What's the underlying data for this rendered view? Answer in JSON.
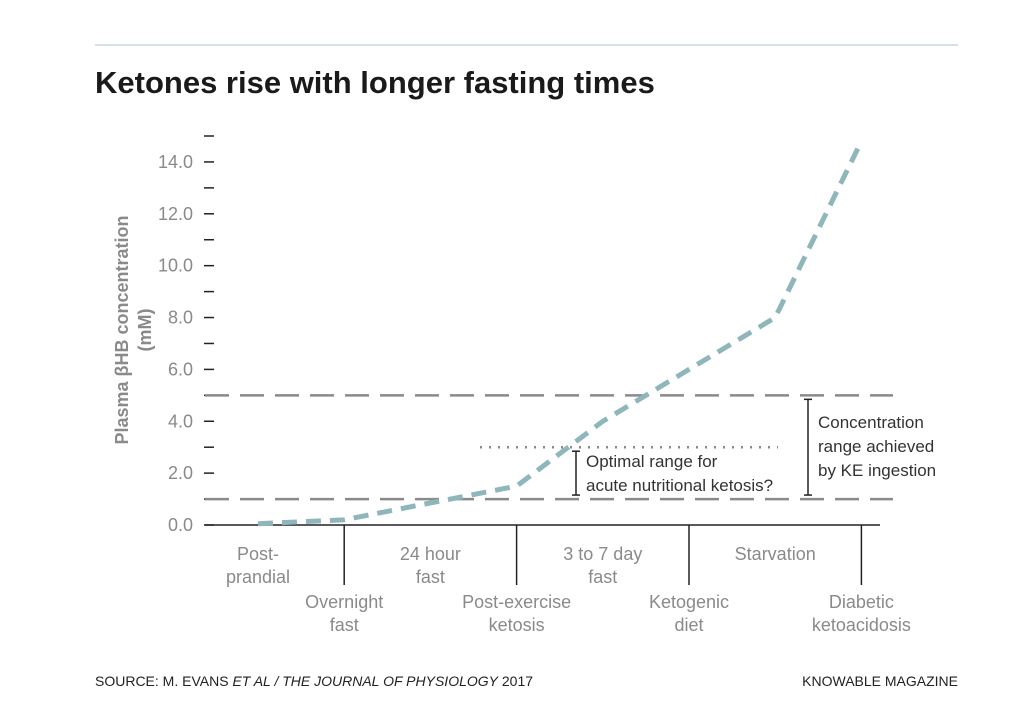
{
  "chart_data": {
    "type": "line",
    "title": "Ketones rise with longer fasting times",
    "y_label": [
      "Plasma βHB concentration",
      "(mM)"
    ],
    "categories": [
      [
        "Post-",
        "prandial"
      ],
      [
        "Overnight",
        "fast"
      ],
      [
        "24 hour",
        "fast"
      ],
      [
        "Post-exercise",
        "ketosis"
      ],
      [
        "3 to 7 day",
        "fast"
      ],
      [
        "Ketogenic",
        "diet"
      ],
      [
        "Starvation"
      ],
      [
        "Diabetic",
        "ketoacidosis"
      ]
    ],
    "series": [
      {
        "color": "#8fb6ba",
        "values": [
          0.05,
          0.2,
          0.85,
          1.5,
          4.0,
          6.0,
          8.0,
          14.8
        ]
      }
    ],
    "ylim": [
      0,
      15
    ],
    "yticks": [
      {
        "value": 0,
        "label": "0.0"
      },
      {
        "value": 2,
        "label": "2.0"
      },
      {
        "value": 4,
        "label": "4.0"
      },
      {
        "value": 6,
        "label": "6.0"
      },
      {
        "value": 8,
        "label": "8.0"
      },
      {
        "value": 10,
        "label": "10.0"
      },
      {
        "value": 12,
        "label": "12.0"
      },
      {
        "value": 14,
        "label": "14.0"
      }
    ],
    "yminorticks": [
      1,
      3,
      5,
      7,
      9,
      11,
      13,
      15
    ],
    "reference_lines": [
      {
        "value": 1,
        "style": "dashed"
      },
      {
        "value": 5,
        "style": "dashed"
      },
      {
        "value": 3,
        "style": "dotted"
      }
    ],
    "annotations": [
      {
        "range": [
          1,
          3
        ],
        "lines": [
          "Optimal range for",
          "acute nutritional ketosis?"
        ]
      },
      {
        "range": [
          1,
          5
        ],
        "lines": [
          "Concentration",
          "range achieved",
          "by KE ingestion"
        ]
      }
    ],
    "source": [
      "SOURCE: M. EVANS ",
      "ET AL / THE JOURNAL OF PHYSIOLOGY",
      " 2017"
    ],
    "credit": "KNOWABLE MAGAZINE"
  }
}
